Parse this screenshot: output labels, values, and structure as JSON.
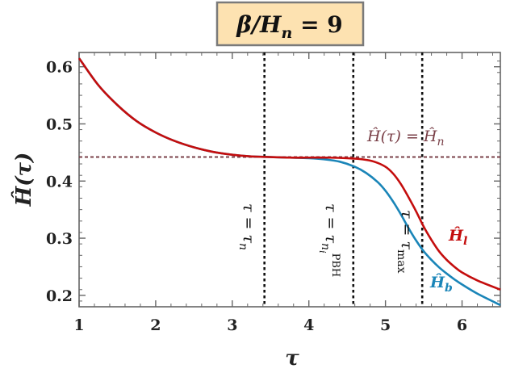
{
  "chart_data": {
    "type": "line",
    "title": "β/Hn = 9",
    "title_parts": {
      "main": "β/H",
      "sub": "n",
      "eq": " = 9"
    },
    "xlabel": "τ",
    "ylabel": "Ĥ(τ)",
    "xlim": [
      1,
      6.5
    ],
    "ylim": [
      0.18,
      0.625
    ],
    "xticks": [
      1,
      2,
      3,
      4,
      5,
      6
    ],
    "yticks": [
      0.2,
      0.3,
      0.4,
      0.5,
      0.6
    ],
    "ytick_labels": [
      "0.2",
      "0.3",
      "0.4",
      "0.5",
      "0.6"
    ],
    "xtick_labels": [
      "1",
      "2",
      "3",
      "4",
      "5",
      "6"
    ],
    "grid": false,
    "series": [
      {
        "name": "Ĥl",
        "label_main": "Ĥ",
        "label_sub": "l",
        "color": "#c40d0d",
        "x": [
          1.0,
          1.25,
          1.5,
          1.75,
          2.0,
          2.25,
          2.5,
          2.75,
          3.0,
          3.25,
          3.5,
          3.75,
          4.0,
          4.25,
          4.5,
          4.7,
          4.85,
          5.0,
          5.1,
          5.2,
          5.3,
          5.4,
          5.5,
          5.6,
          5.7,
          5.8,
          5.9,
          6.0,
          6.2,
          6.5
        ],
        "y": [
          0.615,
          0.568,
          0.533,
          0.505,
          0.485,
          0.47,
          0.459,
          0.451,
          0.446,
          0.443,
          0.442,
          0.441,
          0.441,
          0.441,
          0.44,
          0.438,
          0.434,
          0.425,
          0.413,
          0.395,
          0.372,
          0.347,
          0.32,
          0.297,
          0.277,
          0.262,
          0.25,
          0.24,
          0.226,
          0.21
        ]
      },
      {
        "name": "Ĥb",
        "label_main": "Ĥ",
        "label_sub": "b",
        "color": "#1a85b8",
        "x": [
          1.0,
          1.25,
          1.5,
          1.75,
          2.0,
          2.25,
          2.5,
          2.75,
          3.0,
          3.25,
          3.5,
          3.75,
          4.0,
          4.2,
          4.4,
          4.6,
          4.75,
          4.9,
          5.0,
          5.1,
          5.2,
          5.3,
          5.4,
          5.5,
          5.6,
          5.7,
          5.8,
          5.9,
          6.0,
          6.2,
          6.5
        ],
        "y": [
          0.615,
          0.568,
          0.533,
          0.505,
          0.485,
          0.47,
          0.459,
          0.451,
          0.446,
          0.443,
          0.442,
          0.441,
          0.44,
          0.438,
          0.434,
          0.425,
          0.414,
          0.398,
          0.383,
          0.364,
          0.342,
          0.318,
          0.296,
          0.277,
          0.262,
          0.249,
          0.238,
          0.228,
          0.219,
          0.203,
          0.183
        ]
      }
    ],
    "hline": {
      "y": 0.442,
      "color": "#7a4048",
      "label_left": "Ĥ(τ) = Ĥ",
      "label_sub": "n"
    },
    "vlines": [
      {
        "x": 3.42,
        "label_main": "τ = τ",
        "label_sub": "n"
      },
      {
        "x": 4.58,
        "label_main": "τ = τ",
        "label_sub": "n",
        "label_subsub": "i",
        "label_sup": "PBH"
      },
      {
        "x": 5.48,
        "label_main": "τ = τ",
        "label_sub": "max"
      }
    ]
  }
}
